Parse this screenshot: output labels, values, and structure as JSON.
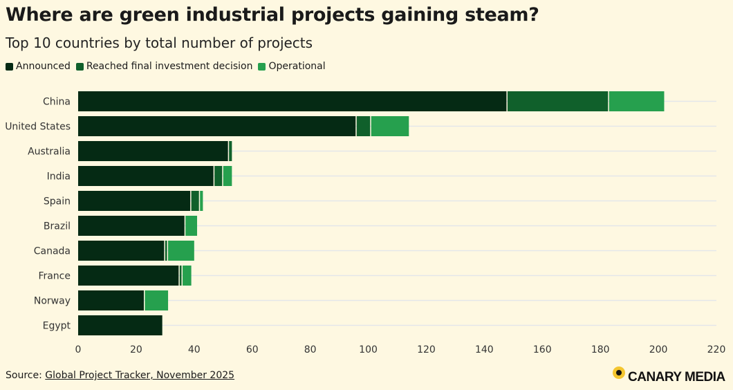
{
  "chart_data": {
    "type": "bar",
    "orientation": "horizontal",
    "stacked": true,
    "title": "Where are green industrial projects gaining steam?",
    "subtitle": "Top 10 countries by total number of projects",
    "categories": [
      "China",
      "United States",
      "Australia",
      "India",
      "Spain",
      "Brazil",
      "Canada",
      "France",
      "Norway",
      "Egypt"
    ],
    "series": [
      {
        "name": "Announced",
        "color": "#052a14",
        "values": [
          148,
          96,
          52,
          47,
          39,
          37,
          30,
          35,
          23,
          29
        ]
      },
      {
        "name": "Reached final investment decision",
        "color": "#10602b",
        "values": [
          35,
          5,
          1,
          3,
          3,
          0,
          1,
          1,
          0,
          0
        ]
      },
      {
        "name": "Operational",
        "color": "#26a04e",
        "values": [
          19,
          13,
          0,
          3,
          1,
          4,
          9,
          3,
          8,
          0
        ]
      }
    ],
    "xlim": [
      0,
      220
    ],
    "xticks": [
      "0",
      "20",
      "40",
      "60",
      "80",
      "100",
      "120",
      "140",
      "160",
      "180",
      "200",
      "220"
    ],
    "grid": true,
    "legend_position": "top-left"
  },
  "source": {
    "label": "Source: ",
    "link_text": "Global Project Tracker, November 2025"
  },
  "logo": {
    "text": "CANARY MEDIA"
  }
}
